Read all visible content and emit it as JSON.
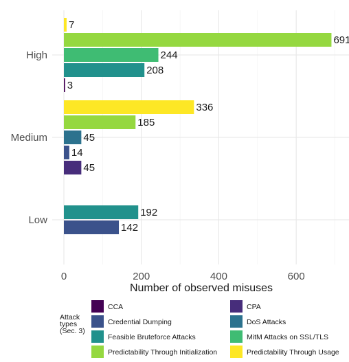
{
  "chart_data": {
    "type": "bar",
    "orientation": "horizontal",
    "categories": [
      "High",
      "Medium",
      "Low"
    ],
    "xlabel": "Number of observed misuses",
    "ylabel": "",
    "xlim": [
      0,
      750
    ],
    "xticks": [
      0,
      200,
      400,
      600
    ],
    "grid": true,
    "legend": {
      "title": "Attack\ntypes\n(Sec. 3)",
      "position": "bottom"
    },
    "series": [
      {
        "name": "CCA",
        "color": "#440154",
        "values": [
          3,
          null,
          null
        ]
      },
      {
        "name": "CPA",
        "color": "#472d7b",
        "values": [
          null,
          45,
          null
        ]
      },
      {
        "name": "Credential Dumping",
        "color": "#3b528b",
        "values": [
          null,
          14,
          142
        ]
      },
      {
        "name": "DoS Attacks",
        "color": "#2c728e",
        "values": [
          null,
          45,
          null
        ]
      },
      {
        "name": "Feasible Bruteforce Attacks",
        "color": "#21918c",
        "values": [
          208,
          null,
          192
        ]
      },
      {
        "name": "MitM Attacks on SSL/TLS",
        "color": "#3fbc73",
        "values": [
          244,
          null,
          null
        ]
      },
      {
        "name": "Predictability Through Initialization",
        "color": "#95d840",
        "values": [
          691,
          185,
          null
        ]
      },
      {
        "name": "Predictability Through Usage",
        "color": "#fde725",
        "values": [
          7,
          336,
          null
        ]
      }
    ]
  }
}
